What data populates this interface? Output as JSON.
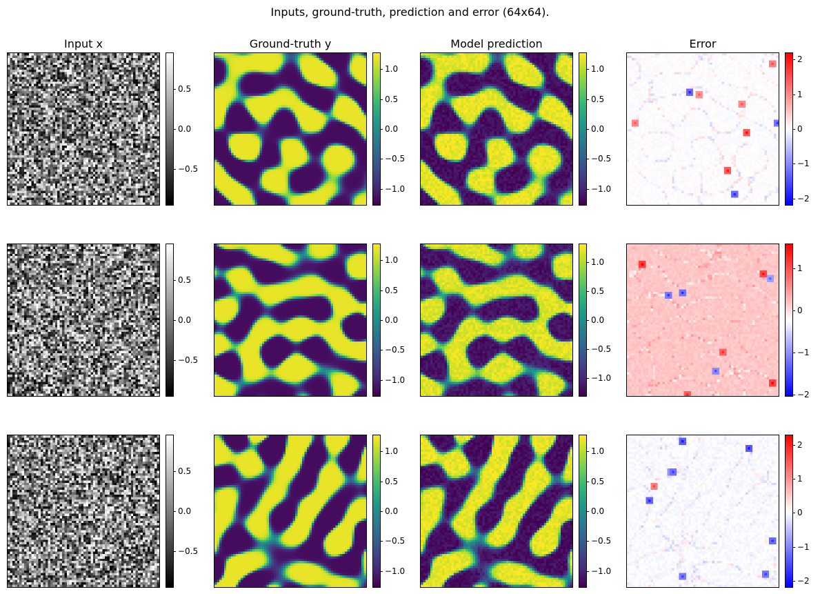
{
  "chart_data": {
    "type": "heatmap",
    "title": "Inputs, ground-truth, prediction and error (64x64).",
    "grid_size": [
      64,
      64
    ],
    "column_titles": [
      "Input x",
      "Ground-truth y",
      "Model prediction",
      "Error"
    ],
    "colormaps": {
      "input": "gray",
      "ground_truth": "viridis",
      "prediction": "viridis",
      "error": "bwr"
    },
    "rows": [
      {
        "input": {
          "vmin": -0.95,
          "vmax": 0.95,
          "ticks": [
            0.5,
            0.0,
            -0.5
          ],
          "tick_labels": [
            "0.5",
            "0.0",
            "−0.5"
          ]
        },
        "ground_truth": {
          "vmin": -1.28,
          "vmax": 1.28,
          "ticks": [
            1.0,
            0.5,
            0.0,
            -0.5,
            -1.0
          ],
          "tick_labels": [
            "1.0",
            "0.5",
            "0.0",
            "−0.5",
            "−1.0"
          ]
        },
        "prediction": {
          "vmin": -1.28,
          "vmax": 1.28,
          "ticks": [
            1.0,
            0.5,
            0.0,
            -0.5,
            -1.0
          ],
          "tick_labels": [
            "1.0",
            "0.5",
            "0.0",
            "−0.5",
            "−1.0"
          ]
        },
        "error": {
          "vmin": -2.2,
          "vmax": 2.2,
          "ticks": [
            2,
            1,
            0,
            -1,
            -2
          ],
          "tick_labels": [
            "2",
            "1",
            "0",
            "−1",
            "−2"
          ]
        }
      },
      {
        "input": {
          "vmin": -0.95,
          "vmax": 0.95,
          "ticks": [
            0.5,
            0.0,
            -0.5
          ],
          "tick_labels": [
            "0.5",
            "0.0",
            "−0.5"
          ]
        },
        "ground_truth": {
          "vmin": -1.28,
          "vmax": 1.28,
          "ticks": [
            1.0,
            0.5,
            0.0,
            -0.5,
            -1.0
          ],
          "tick_labels": [
            "1.0",
            "0.5",
            "0.0",
            "−0.5",
            "−1.0"
          ]
        },
        "prediction": {
          "vmin": -1.32,
          "vmax": 1.32,
          "ticks": [
            1.0,
            0.5,
            0.0,
            -0.5,
            -1.0
          ],
          "tick_labels": [
            "1.0",
            "0.5",
            "0.0",
            "−0.5",
            "−1.0"
          ]
        },
        "error": {
          "vmin": -2.05,
          "vmax": 1.6,
          "ticks": [
            1,
            0,
            -1,
            -2
          ],
          "tick_labels": [
            "1",
            "0",
            "−1",
            "−2"
          ]
        }
      },
      {
        "input": {
          "vmin": -0.95,
          "vmax": 0.95,
          "ticks": [
            0.5,
            0.0,
            -0.5
          ],
          "tick_labels": [
            "0.5",
            "0.0",
            "−0.5"
          ]
        },
        "ground_truth": {
          "vmin": -1.28,
          "vmax": 1.28,
          "ticks": [
            1.0,
            0.5,
            0.0,
            -0.5,
            -1.0
          ],
          "tick_labels": [
            "1.0",
            "0.5",
            "0.0",
            "−0.5",
            "−1.0"
          ]
        },
        "prediction": {
          "vmin": -1.28,
          "vmax": 1.28,
          "ticks": [
            1.0,
            0.5,
            0.0,
            -0.5,
            -1.0
          ],
          "tick_labels": [
            "1.0",
            "0.5",
            "0.0",
            "−0.5",
            "−1.0"
          ]
        },
        "error": {
          "vmin": -2.2,
          "vmax": 2.3,
          "ticks": [
            2,
            1,
            0,
            -1,
            -2
          ],
          "tick_labels": [
            "2",
            "1",
            "0",
            "−1",
            "−2"
          ]
        }
      }
    ]
  }
}
